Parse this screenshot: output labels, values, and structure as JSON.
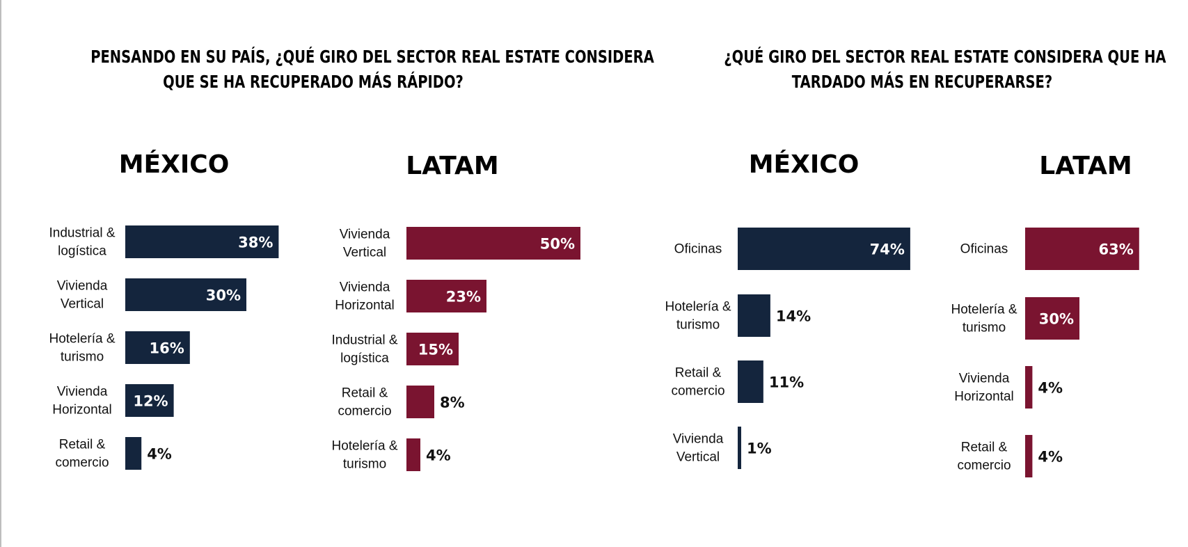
{
  "questions": {
    "left": [
      "PENSANDO EN SU PAÍS,  ¿QUÉ GIRO DEL SECTOR REAL ESTATE CONSIDERA",
      "QUE SE HA RECUPERADO MÁS RÁPIDO?"
    ],
    "right": [
      "¿QUÉ GIRO DEL SECTOR REAL ESTATE CONSIDERA QUE HA",
      "TARDADO MÁS EN RECUPERARSE?"
    ]
  },
  "colors": {
    "mexico": "#14253d",
    "latam": "#7a1430"
  },
  "chart_data": [
    {
      "type": "bar",
      "orientation": "horizontal",
      "question": "fastest-recovery",
      "title": "MÉXICO",
      "color_key": "mexico",
      "categories": [
        [
          "Industrial &",
          "logística"
        ],
        [
          "Vivienda",
          "Vertical"
        ],
        [
          "Hotelería &",
          "turismo"
        ],
        [
          "Vivienda",
          "Horizontal"
        ],
        [
          "Retail &",
          "comercio"
        ]
      ],
      "values": [
        38,
        30,
        16,
        12,
        4
      ],
      "labels": [
        "38%",
        "30%",
        "16%",
        "12%",
        "4%"
      ],
      "unit": "%"
    },
    {
      "type": "bar",
      "orientation": "horizontal",
      "question": "fastest-recovery",
      "title": "LATAM",
      "color_key": "latam",
      "categories": [
        [
          "Vivienda",
          "Vertical"
        ],
        [
          "Vivienda",
          "Horizontal"
        ],
        [
          "Industrial &",
          "logística"
        ],
        [
          "Retail &",
          "comercio"
        ],
        [
          "Hotelería &",
          "turismo"
        ]
      ],
      "values": [
        50,
        23,
        15,
        8,
        4
      ],
      "labels": [
        "50%",
        "23%",
        "15%",
        "8%",
        "4%"
      ],
      "unit": "%"
    },
    {
      "type": "bar",
      "orientation": "horizontal",
      "question": "slowest-recovery",
      "title": "MÉXICO",
      "color_key": "mexico",
      "categories": [
        [
          "Oficinas"
        ],
        [
          "Hotelería &",
          "turismo"
        ],
        [
          "Retail &",
          "comercio"
        ],
        [
          "Vivienda",
          "Vertical"
        ]
      ],
      "values": [
        74,
        14,
        11,
        1
      ],
      "labels": [
        "74%",
        "14%",
        "11%",
        "1%"
      ],
      "unit": "%"
    },
    {
      "type": "bar",
      "orientation": "horizontal",
      "question": "slowest-recovery",
      "title": "LATAM",
      "color_key": "latam",
      "categories": [
        [
          "Oficinas"
        ],
        [
          "Hotelería &",
          "turismo"
        ],
        [
          "Vivienda",
          "Horizontal"
        ],
        [
          "Retail &",
          "comercio"
        ]
      ],
      "values": [
        63,
        30,
        4,
        4
      ],
      "labels": [
        "63%",
        "30%",
        "4%",
        "4%"
      ],
      "unit": "%"
    }
  ]
}
